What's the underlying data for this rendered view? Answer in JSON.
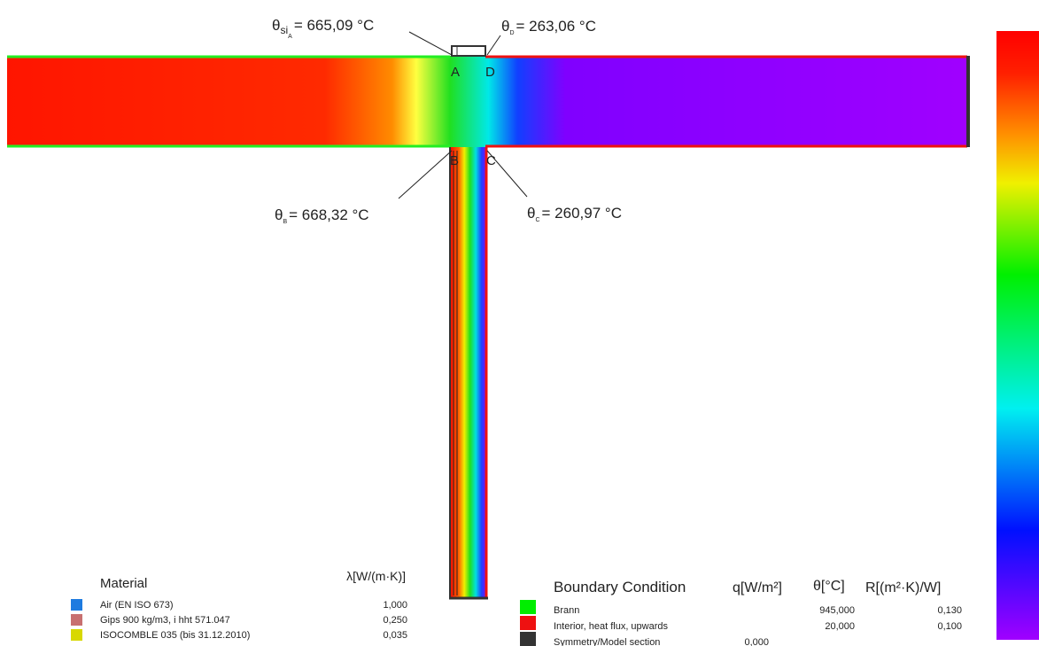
{
  "labels": {
    "points": [
      "A",
      "D",
      "B",
      "C"
    ]
  },
  "callouts": [
    {
      "symbol": "θ",
      "sub": "si",
      "subsub": "A",
      "text": "= 665,09 °C"
    },
    {
      "symbol": "θ",
      "sub": "D",
      "text": "= 263,06 °C"
    },
    {
      "symbol": "θ",
      "sub": "B",
      "text": "= 668,32 °C"
    },
    {
      "symbol": "θ",
      "sub": "C",
      "text": "= 260,97 °C"
    }
  ],
  "material_legend": {
    "title": "Material",
    "unit": "λ[W/(m·K)]",
    "rows": [
      {
        "name": "Air (EN ISO 673)",
        "value": "1,000",
        "color": "#1e7be0"
      },
      {
        "name": "Gips 900 kg/m3, i hht 571.047",
        "value": "0,250",
        "color": "#c87070"
      },
      {
        "name": "ISOCOMBLE 035 (bis 31.12.2010)",
        "value": "0,035",
        "color": "#d8d800"
      }
    ]
  },
  "boundary_legend": {
    "title": "Boundary Condition",
    "headers": [
      "q[W/m²]",
      "θ[°C]",
      "R[(m²·K)/W]"
    ],
    "rows": [
      {
        "name": "Brann",
        "theta": "945,000",
        "r": "0,130",
        "color": "#00ee00"
      },
      {
        "name": "Interior, heat flux, upwards",
        "theta": "20,000",
        "r": "0,100",
        "color": "#ee1111"
      },
      {
        "name": "Symmetry/Model section",
        "q": "0,000",
        "color": "#333333"
      }
    ]
  }
}
